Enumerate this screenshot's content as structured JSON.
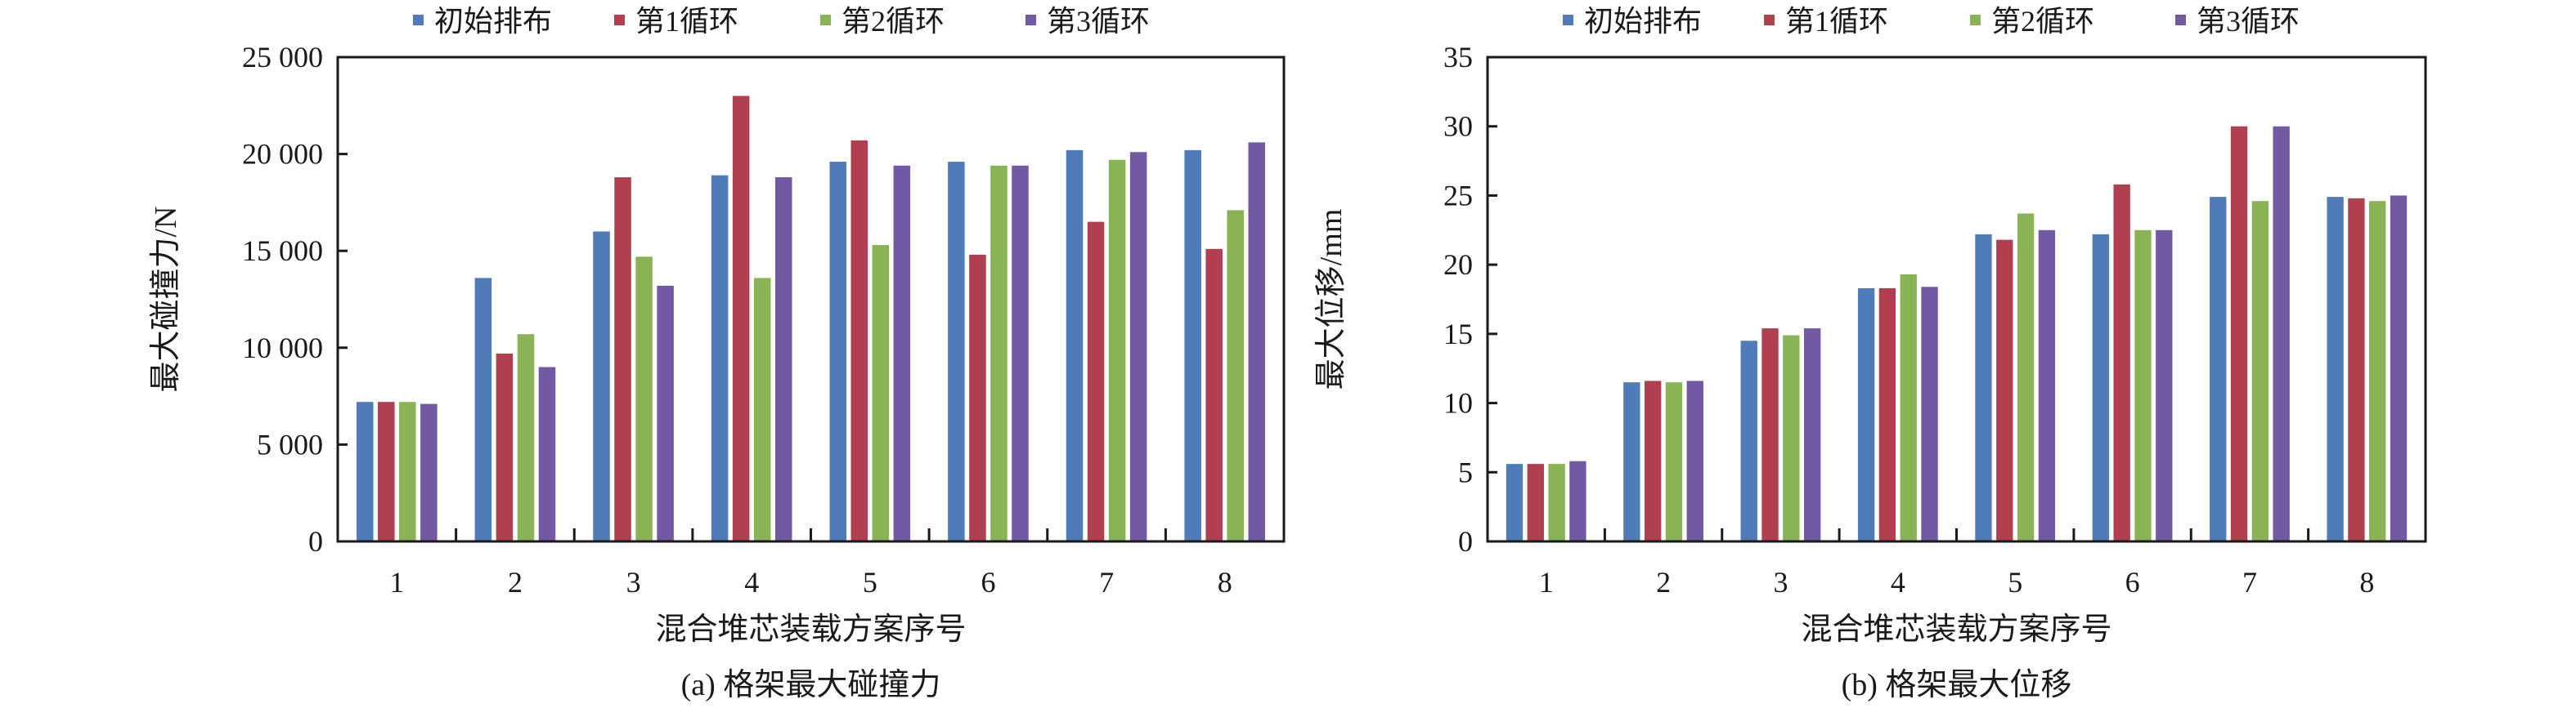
{
  "colors": {
    "s0": "#4f7bb8",
    "s1": "#b13f50",
    "s2": "#89b455",
    "s3": "#7359a3",
    "axis": "#1a1a1a"
  },
  "chart_data": [
    {
      "type": "bar",
      "caption": "(a) 格架最大碰撞力",
      "xlabel": "混合堆芯装载方案序号",
      "ylabel": "最大碰撞力/N",
      "ylim": [
        0,
        25000
      ],
      "yticks": [
        0,
        5000,
        10000,
        15000,
        20000,
        25000
      ],
      "ytick_labels": [
        "0",
        "5 000",
        "10 000",
        "15 000",
        "20 000",
        "25 000"
      ],
      "categories": [
        "1",
        "2",
        "3",
        "4",
        "5",
        "6",
        "7",
        "8"
      ],
      "legend_position": "top",
      "series": [
        {
          "name": "初始排布",
          "values": [
            7200,
            13600,
            16000,
            18900,
            19600,
            19600,
            20200,
            20200
          ]
        },
        {
          "name": "第1循环",
          "values": [
            7200,
            9700,
            18800,
            23000,
            20700,
            14800,
            16500,
            15100
          ]
        },
        {
          "name": "第2循环",
          "values": [
            7200,
            10700,
            14700,
            13600,
            15300,
            19400,
            19700,
            17100
          ]
        },
        {
          "name": "第3循环",
          "values": [
            7100,
            9000,
            13200,
            18800,
            19400,
            19400,
            20100,
            20600
          ]
        }
      ]
    },
    {
      "type": "bar",
      "caption": "(b) 格架最大位移",
      "xlabel": "混合堆芯装载方案序号",
      "ylabel": "最大位移/mm",
      "ylim": [
        0,
        35
      ],
      "yticks": [
        0,
        5,
        10,
        15,
        20,
        25,
        30,
        35
      ],
      "ytick_labels": [
        "0",
        "5",
        "10",
        "15",
        "20",
        "25",
        "30",
        "35"
      ],
      "categories": [
        "1",
        "2",
        "3",
        "4",
        "5",
        "6",
        "7",
        "8"
      ],
      "legend_position": "top",
      "series": [
        {
          "name": "初始排布",
          "values": [
            5.6,
            11.5,
            14.5,
            18.3,
            22.2,
            22.2,
            24.9,
            24.9
          ]
        },
        {
          "name": "第1循环",
          "values": [
            5.6,
            11.6,
            15.4,
            18.3,
            21.8,
            25.8,
            30.0,
            24.8
          ]
        },
        {
          "name": "第2循环",
          "values": [
            5.6,
            11.5,
            14.9,
            19.3,
            23.7,
            22.5,
            24.6,
            24.6
          ]
        },
        {
          "name": "第3循环",
          "values": [
            5.8,
            11.6,
            15.4,
            18.4,
            22.5,
            22.5,
            30.0,
            25.0
          ]
        }
      ]
    }
  ]
}
